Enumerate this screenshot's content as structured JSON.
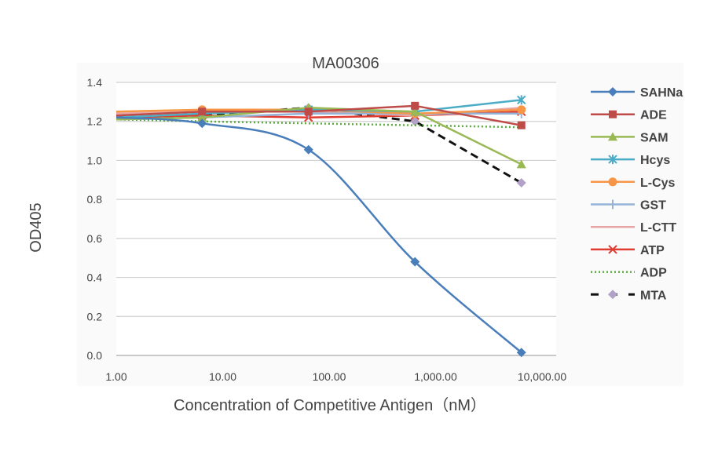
{
  "chart_data": {
    "type": "line",
    "title": "MA00306",
    "xlabel": "Concentration of Competitive Antigen（nM）",
    "ylabel": "OD405",
    "x_scale": "log",
    "xlim": [
      1,
      10000
    ],
    "ylim": [
      0,
      1.4
    ],
    "x_ticks": [
      "1.00",
      "10.00",
      "100.00",
      "1,000.00",
      "10,000.00"
    ],
    "y_ticks": [
      "0.0",
      "0.2",
      "0.4",
      "0.6",
      "0.8",
      "1.0",
      "1.2",
      "1.4"
    ],
    "grid": "horizontal",
    "legend": "right",
    "x": [
      1,
      6.4,
      64,
      640,
      6400
    ],
    "series": [
      {
        "name": "SAHNa",
        "color": "#4a7ebb",
        "marker": "diamond",
        "smooth": true,
        "values": [
          1.22,
          1.19,
          1.055,
          0.48,
          0.015
        ]
      },
      {
        "name": "ADE",
        "color": "#be4b48",
        "marker": "square",
        "values": [
          1.23,
          1.25,
          1.25,
          1.28,
          1.18
        ]
      },
      {
        "name": "SAM",
        "color": "#98b954",
        "marker": "triangle",
        "values": [
          1.21,
          1.22,
          1.27,
          1.25,
          0.98
        ]
      },
      {
        "name": "Hcys",
        "color": "#4bacc6",
        "marker": "star",
        "values": [
          1.22,
          1.24,
          1.26,
          1.25,
          1.31
        ]
      },
      {
        "name": "L-Cys",
        "color": "#f79646",
        "marker": "circle",
        "values": [
          1.25,
          1.26,
          1.26,
          1.24,
          1.26
        ]
      },
      {
        "name": "GST",
        "color": "#95b3d7",
        "marker": "plus",
        "values": [
          1.21,
          1.22,
          1.24,
          1.24,
          1.24
        ]
      },
      {
        "name": "L-CTT",
        "color": "#e6a6a5",
        "marker": "none",
        "values": [
          1.24,
          1.25,
          1.25,
          1.23,
          1.27
        ]
      },
      {
        "name": "ATP",
        "color": "#e03c31",
        "marker": "x",
        "values": [
          1.22,
          1.23,
          1.22,
          1.23,
          1.25
        ]
      },
      {
        "name": "ADP",
        "color": "#5aab3e",
        "marker": "none",
        "dash": "dotted",
        "values": [
          1.21,
          1.2,
          1.19,
          1.18,
          1.17
        ]
      },
      {
        "name": "MTA",
        "color": "#111111",
        "marker": "diamond",
        "marker_color": "#b3a2c7",
        "dash": "dashed",
        "values": [
          1.22,
          1.23,
          1.27,
          1.2,
          0.885
        ]
      }
    ]
  }
}
